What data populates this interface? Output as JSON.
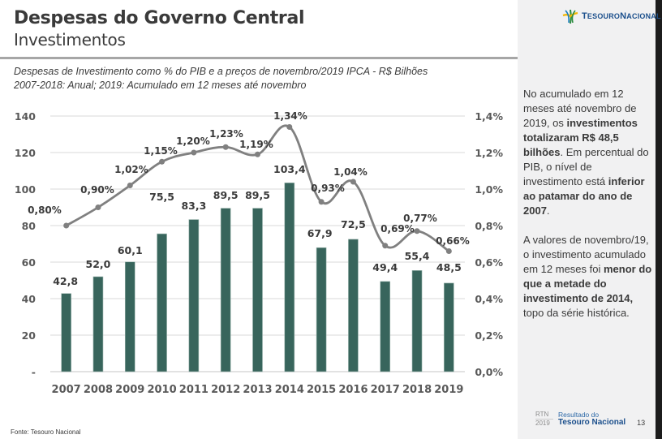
{
  "header": {
    "title": "Despesas do Governo Central",
    "subtitle": "Investimentos",
    "chart_caption_line1": "Despesas de Investimento como % do PIB e a preços de novembro/2019 IPCA - R$ Bilhões",
    "chart_caption_line2": "2007-2018: Anual; 2019: Acumulado em 12 meses até novembro"
  },
  "logo": {
    "icon": "tesouro-star-icon",
    "text_prefix": "T",
    "text_mid": "ESOURO",
    "text_prefix2": "N",
    "text_end": "ACIONAL"
  },
  "side_panel": {
    "paragraph1": [
      {
        "text": "No acumulado em 12 meses até novembro de 2019, os ",
        "bold": false
      },
      {
        "text": "investimentos totalizaram R$ 48,5 bilhões",
        "bold": true
      },
      {
        "text": ". Em percentual do PIB, o nível de investimento está ",
        "bold": false
      },
      {
        "text": "inferior ao patamar do ano de 2007",
        "bold": true
      },
      {
        "text": ".",
        "bold": false
      }
    ],
    "paragraph2": [
      {
        "text": "A valores de novembro/19, o investimento acumulado em 12 meses foi ",
        "bold": false
      },
      {
        "text": "menor do que a metade do investimento de 2014,",
        "bold": true
      },
      {
        "text": " topo da série histórica.",
        "bold": false
      }
    ]
  },
  "footer": {
    "rtn": "RTN",
    "year": "2019",
    "resultado": "Resultado do",
    "tesouro": "Tesouro Nacional",
    "page": "13",
    "source": "Fonte: Tesouro Nacional"
  },
  "colors": {
    "bar": "#38655c",
    "line": "#808080",
    "grid": "#d9d9d9",
    "text": "#3a3a3a"
  },
  "chart_data": {
    "type": "bar",
    "title": "Despesas de Investimento como % do PIB e a preços de novembro/2019 IPCA - R$ Bilhões",
    "categories": [
      "2007",
      "2008",
      "2009",
      "2010",
      "2011",
      "2012",
      "2013",
      "2014",
      "2015",
      "2016",
      "2017",
      "2018",
      "2019"
    ],
    "series": [
      {
        "name": "Investimento (R$ bilhões)",
        "type": "bar",
        "axis": "left",
        "values": [
          42.8,
          52.0,
          60.1,
          75.5,
          83.3,
          89.5,
          89.5,
          103.4,
          67.9,
          72.5,
          49.4,
          55.4,
          48.5
        ],
        "labels": [
          "42,8",
          "52,0",
          "60,1",
          "75,5",
          "83,3",
          "89,5",
          "89,5",
          "103,4",
          "67,9",
          "72,5",
          "49,4",
          "55,4",
          "48,5"
        ]
      },
      {
        "name": "Investimento (% do PIB)",
        "type": "line",
        "axis": "right",
        "values": [
          0.8,
          0.9,
          1.02,
          1.15,
          1.2,
          1.23,
          1.19,
          1.34,
          0.93,
          1.04,
          0.69,
          0.77,
          0.66
        ],
        "labels": [
          "0,80%",
          "0,90%",
          "1,02%",
          "1,15%",
          "1,20%",
          "1,23%",
          "1,19%",
          "1,34%",
          "0,93%",
          "1,04%",
          "0,69%",
          "0,77%",
          "0,66%"
        ]
      }
    ],
    "y_left": {
      "min": 0,
      "max": 140,
      "ticks": [
        "-",
        "20",
        "40",
        "60",
        "80",
        "100",
        "120",
        "140"
      ]
    },
    "y_right": {
      "min": 0,
      "max": 1.4,
      "ticks": [
        "0,0%",
        "0,2%",
        "0,4%",
        "0,6%",
        "0,8%",
        "1,0%",
        "1,2%",
        "1,4%"
      ]
    },
    "grid": true,
    "legend": "none"
  }
}
